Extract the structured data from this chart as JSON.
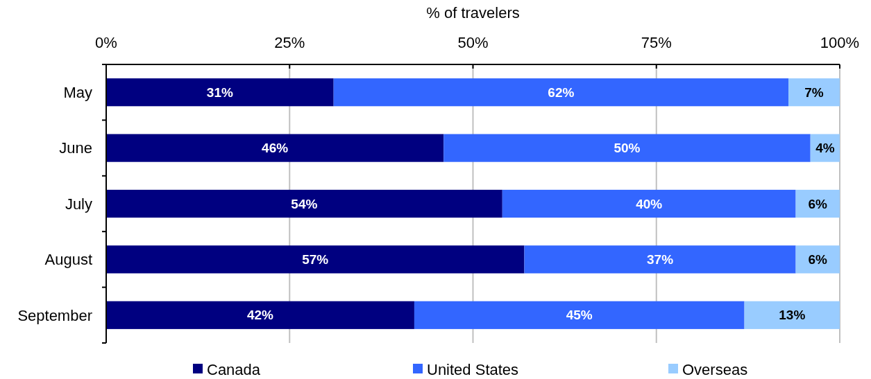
{
  "chart_data": {
    "type": "bar",
    "orientation": "horizontal",
    "stacked": true,
    "xlabel": "% of travelers",
    "categories": [
      "May",
      "June",
      "July",
      "August",
      "September"
    ],
    "series": [
      {
        "name": "Canada",
        "color": "#000080",
        "values": [
          31,
          46,
          54,
          57,
          42
        ],
        "value_labels": [
          "31%",
          "46%",
          "54%",
          "57%",
          "42%"
        ]
      },
      {
        "name": "United States",
        "color": "#3366ff",
        "values": [
          62,
          50,
          40,
          37,
          45
        ],
        "value_labels": [
          "62%",
          "50%",
          "40%",
          "37%",
          "45%"
        ]
      },
      {
        "name": "Overseas",
        "color": "#99ccff",
        "values": [
          7,
          4,
          6,
          6,
          13
        ],
        "value_labels": [
          "7%",
          "4%",
          "6%",
          "6%",
          "13%"
        ]
      }
    ],
    "xlim": [
      0,
      100
    ],
    "xticks": [
      {
        "value": 0,
        "label": "0%"
      },
      {
        "value": 25,
        "label": "25%"
      },
      {
        "value": 50,
        "label": "50%"
      },
      {
        "value": 75,
        "label": "75%"
      },
      {
        "value": 100,
        "label": "100%"
      }
    ],
    "grid": "x",
    "legend": "bottom"
  }
}
